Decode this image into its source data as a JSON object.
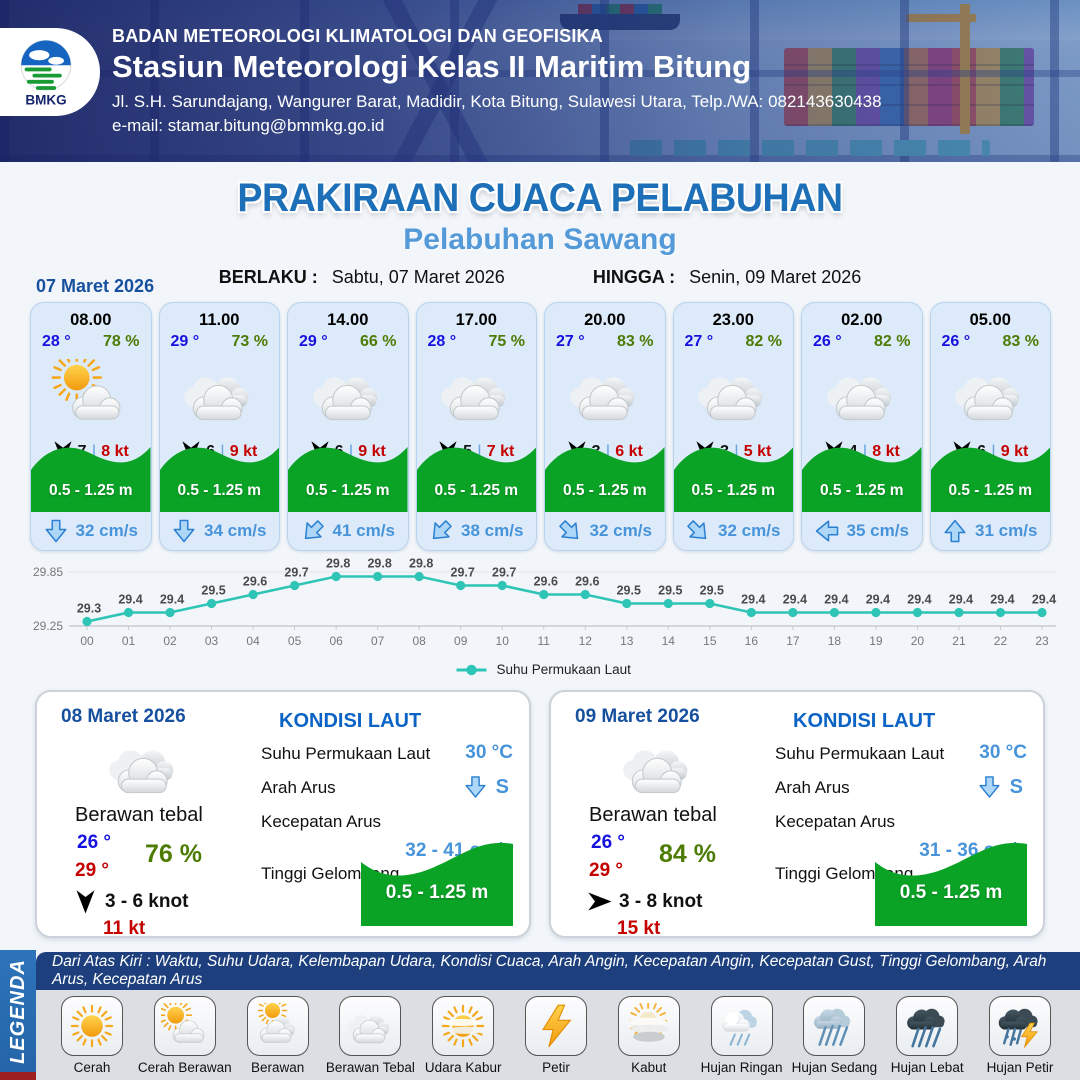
{
  "header": {
    "agency": "BADAN METEOROLOGI KLIMATOLOGI DAN GEOFISIKA",
    "station": "Stasiun Meteorologi Kelas II Maritim Bitung",
    "address": "Jl. S.H. Sarundajang, Wangurer Barat, Madidir, Kota Bitung, Sulawesi Utara, Telp./WA: 082143630438",
    "email": "e-mail: stamar.bitung@bmmkg.go.id",
    "logo_text": "BMKG"
  },
  "title": {
    "main": "PRAKIRAAN CUACA PELABUHAN",
    "port": "Pelabuhan Sawang"
  },
  "validity": {
    "from_label": "BERLAKU :",
    "from_value": "Sabtu, 07 Maret 2026",
    "to_label": "HINGGA :",
    "to_value": "Senin, 09 Maret 2026"
  },
  "forecast": {
    "date": "07 Maret 2026",
    "wind_sep": "|",
    "cards": [
      {
        "time": "08.00",
        "temp": "28 °",
        "humidity": "78 %",
        "icon": "cerah-berawan",
        "wind_speed": "7",
        "wind_gust": "8 kt",
        "wave": "0.5 - 1.25 m",
        "current_speed": "32 cm/s",
        "current_dir": "S",
        "current_rot": 0
      },
      {
        "time": "11.00",
        "temp": "29 °",
        "humidity": "73 %",
        "icon": "berawan-tebal",
        "wind_speed": "6",
        "wind_gust": "9 kt",
        "wave": "0.5 - 1.25 m",
        "current_speed": "34 cm/s",
        "current_dir": "S",
        "current_rot": 0
      },
      {
        "time": "14.00",
        "temp": "29 °",
        "humidity": "66 %",
        "icon": "berawan-tebal",
        "wind_speed": "6",
        "wind_gust": "9 kt",
        "wave": "0.5 - 1.25 m",
        "current_speed": "41 cm/s",
        "current_dir": "SW",
        "current_rot": 45
      },
      {
        "time": "17.00",
        "temp": "28 °",
        "humidity": "75 %",
        "icon": "berawan-tebal",
        "wind_speed": "5",
        "wind_gust": "7 kt",
        "wave": "0.5 - 1.25 m",
        "current_speed": "38 cm/s",
        "current_dir": "SW",
        "current_rot": 45
      },
      {
        "time": "20.00",
        "temp": "27 °",
        "humidity": "83 %",
        "icon": "berawan-tebal",
        "wind_speed": "3",
        "wind_gust": "6 kt",
        "wave": "0.5 - 1.25 m",
        "current_speed": "32 cm/s",
        "current_dir": "SE",
        "current_rot": -45
      },
      {
        "time": "23.00",
        "temp": "27 °",
        "humidity": "82 %",
        "icon": "berawan-tebal",
        "wind_speed": "3",
        "wind_gust": "5 kt",
        "wave": "0.5 - 1.25 m",
        "current_speed": "32 cm/s",
        "current_dir": "SE",
        "current_rot": -45
      },
      {
        "time": "02.00",
        "temp": "26 °",
        "humidity": "82 %",
        "icon": "berawan-tebal",
        "wind_speed": "4",
        "wind_gust": "8 kt",
        "wave": "0.5 - 1.25 m",
        "current_speed": "35 cm/s",
        "current_dir": "W",
        "current_rot": 90
      },
      {
        "time": "05.00",
        "temp": "26 °",
        "humidity": "83 %",
        "icon": "berawan-tebal",
        "wind_speed": "6",
        "wind_gust": "9 kt",
        "wave": "0.5 - 1.25 m",
        "current_speed": "31 cm/s",
        "current_dir": "N",
        "current_rot": 180
      }
    ]
  },
  "chart_data": {
    "type": "line",
    "x": [
      "00",
      "01",
      "02",
      "03",
      "04",
      "05",
      "06",
      "07",
      "08",
      "09",
      "10",
      "11",
      "12",
      "13",
      "14",
      "15",
      "16",
      "17",
      "18",
      "19",
      "20",
      "21",
      "22",
      "23"
    ],
    "series": [
      {
        "name": "Suhu Permukaan Laut",
        "values": [
          29.3,
          29.4,
          29.4,
          29.5,
          29.6,
          29.7,
          29.8,
          29.8,
          29.8,
          29.7,
          29.7,
          29.6,
          29.6,
          29.5,
          29.5,
          29.5,
          29.4,
          29.4,
          29.4,
          29.4,
          29.4,
          29.4,
          29.4,
          29.4
        ]
      }
    ],
    "ylim": [
      29.25,
      29.85
    ],
    "yticks": [
      "29.25",
      "29.85"
    ],
    "line_color": "#2ec4b6",
    "grid": true,
    "legend_position": "bottom"
  },
  "daily": [
    {
      "date": "08 Maret 2026",
      "icon": "berawan-tebal",
      "condition": "Berawan tebal",
      "temp_min": "26 °",
      "temp_max": "29 °",
      "humidity": "76 %",
      "wind_range": "3  - 6 knot",
      "wind_rot": 0,
      "gust": "11 kt",
      "sea": {
        "title": "KONDISI LAUT",
        "sst_label": "Suhu Permukaan Laut",
        "sst_value": "30 °C",
        "dir_label": "Arah Arus",
        "dir_value": "S",
        "dir_rot": 0,
        "speed_label": "Kecepatan Arus",
        "speed_value": "32 - 41 cm/s",
        "wave_label": "Tinggi Gelombang",
        "wave_value": "0.5 - 1.25 m"
      }
    },
    {
      "date": "09 Maret 2026",
      "icon": "berawan-tebal",
      "condition": "Berawan tebal",
      "temp_min": "26 °",
      "temp_max": "29 °",
      "humidity": "84 %",
      "wind_range": "3  - 8 knot",
      "wind_rot": -90,
      "gust": "15 kt",
      "sea": {
        "title": "KONDISI LAUT",
        "sst_label": "Suhu Permukaan Laut",
        "sst_value": "30 °C",
        "dir_label": "Arah Arus",
        "dir_value": "S",
        "dir_rot": 0,
        "speed_label": "Kecepatan Arus",
        "speed_value": "31 - 36 cm/s",
        "wave_label": "Tinggi Gelombang",
        "wave_value": "0.5 - 1.25 m"
      }
    }
  ],
  "legend": {
    "tab": "LEGENDA",
    "note": "Dari Atas Kiri : Waktu, Suhu Udara, Kelembapan Udara, Kondisi Cuaca, Arah Angin, Kecepatan Angin, Kecepatan Gust, Tinggi Gelombang, Arah Arus, Kecepatan Arus",
    "items": [
      {
        "label": "Cerah",
        "icon": "cerah"
      },
      {
        "label": "Cerah Berawan",
        "icon": "cerah-berawan"
      },
      {
        "label": "Berawan",
        "icon": "berawan"
      },
      {
        "label": "Berawan Tebal",
        "icon": "berawan-tebal"
      },
      {
        "label": "Udara Kabur",
        "icon": "udara-kabur"
      },
      {
        "label": "Petir",
        "icon": "petir"
      },
      {
        "label": "Kabut",
        "icon": "kabut"
      },
      {
        "label": "Hujan Ringan",
        "icon": "hujan-ringan"
      },
      {
        "label": "Hujan Sedang",
        "icon": "hujan-sedang"
      },
      {
        "label": "Hujan Lebat",
        "icon": "hujan-lebat"
      },
      {
        "label": "Hujan Petir",
        "icon": "hujan-petir"
      }
    ]
  },
  "colors": {
    "title_blue": "#1d6fb8",
    "port_blue": "#549ad9",
    "date_blue": "#16509e",
    "temp_blue": "#1512e0",
    "humidity_green": "#4c7c04",
    "gust_red": "#c40000",
    "wave_green": "#0aa326",
    "current_blue": "#4794da",
    "chart_teal": "#2ec4b6",
    "legend_bar_navy": "#1e3f7d",
    "legend_tab_blue": "#2e74ba"
  }
}
